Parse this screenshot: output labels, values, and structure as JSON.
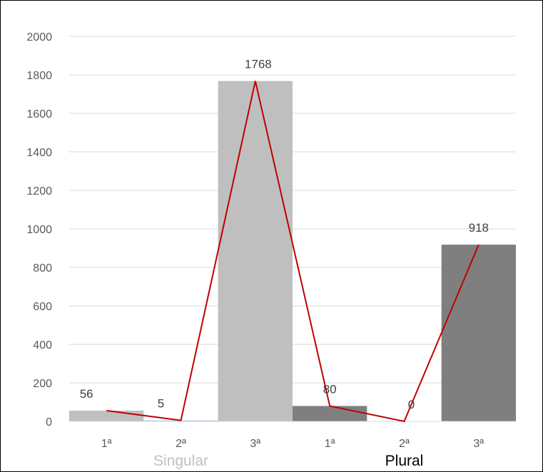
{
  "chart_data": {
    "type": "bar",
    "categories": [
      "1ª",
      "2ª",
      "3ª",
      "1ª",
      "2ª",
      "3ª"
    ],
    "groups": [
      {
        "label": "Singular",
        "span": [
          0,
          2
        ],
        "color": "#bfbfbf"
      },
      {
        "label": "Plural",
        "span": [
          3,
          5
        ],
        "color": "#000000"
      }
    ],
    "values": [
      56,
      5,
      1768,
      80,
      0,
      918
    ],
    "data_labels": [
      "56",
      "5",
      "1768",
      "80",
      "0",
      "918"
    ],
    "bar_colors": [
      "#bfbfbf",
      "#bfbfbf",
      "#bfbfbf",
      "#7f7f7f",
      "#7f7f7f",
      "#7f7f7f"
    ],
    "line_overlay": {
      "values": [
        56,
        5,
        1768,
        80,
        0,
        918
      ],
      "color": "#c00000"
    },
    "ylim": [
      0,
      2000
    ],
    "yticks": [
      "0",
      "200",
      "400",
      "600",
      "800",
      "1000",
      "1200",
      "1400",
      "1600",
      "1800",
      "2000"
    ],
    "gridlines": true,
    "gridline_color": "#d9d9d9",
    "title": "",
    "xlabel": "",
    "ylabel": ""
  }
}
